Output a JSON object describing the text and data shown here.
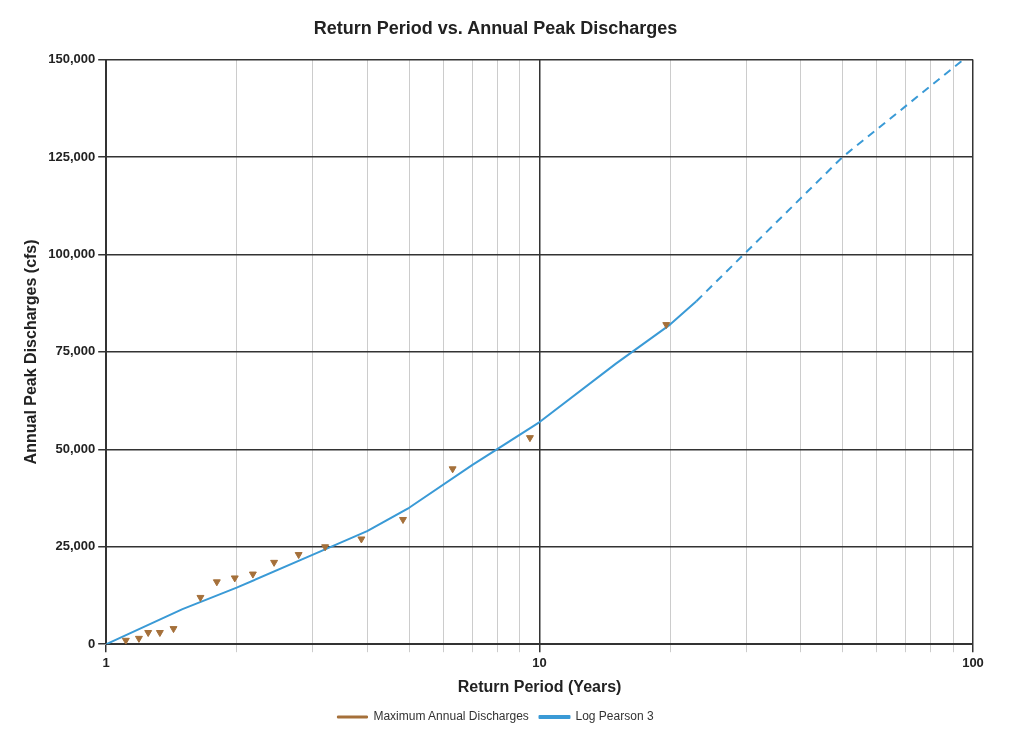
{
  "chart_data": {
    "type": "scatter",
    "title": "Return Period vs. Annual Peak Discharges",
    "xlabel": "Return Period (Years)",
    "ylabel": "Annual Peak Discharges (cfs)",
    "log": "x",
    "grid": true,
    "legend": "bottom",
    "xlim": [
      1,
      100
    ],
    "xticks": [
      1,
      {
        "value": 2,
        "label": null
      },
      {
        "value": 3,
        "label": null
      },
      {
        "value": 4,
        "label": null
      },
      {
        "value": 5,
        "label": null
      },
      {
        "value": 6,
        "label": null
      },
      {
        "value": 7,
        "label": null
      },
      {
        "value": 8,
        "label": null
      },
      {
        "value": 9,
        "label": null
      },
      10,
      {
        "value": 20,
        "label": null
      },
      {
        "value": 30,
        "label": null
      },
      {
        "value": 40,
        "label": null
      },
      {
        "value": 50,
        "label": null
      },
      {
        "value": 60,
        "label": null
      },
      {
        "value": 70,
        "label": null
      },
      {
        "value": 80,
        "label": null
      },
      {
        "value": 90,
        "label": null
      },
      100
    ],
    "ylim": [
      0,
      150000
    ],
    "yticks": [
      {
        "value": 0,
        "label": "0"
      },
      {
        "value": 25000,
        "label": "25,000"
      },
      {
        "value": 50000,
        "label": "50,000"
      },
      {
        "value": 75000,
        "label": "75,000"
      },
      {
        "value": 100000,
        "label": "100,000"
      },
      {
        "value": 125000,
        "label": "125,000"
      },
      {
        "value": 150000,
        "label": "150,000"
      }
    ],
    "series": [
      {
        "name": "Maximum Annual Discharges",
        "marker": "triangle",
        "color": "#a5703a",
        "x": [
          1.11,
          1.19,
          1.25,
          1.33,
          1.43,
          1.65,
          1.8,
          1.98,
          2.18,
          2.44,
          2.78,
          3.2,
          3.88,
          4.84,
          6.3,
          9.5,
          19.6
        ],
        "values": [
          1000,
          1500,
          3000,
          3000,
          4000,
          12000,
          16000,
          17000,
          18000,
          21000,
          23000,
          25000,
          27000,
          32000,
          45000,
          53000,
          82000
        ]
      },
      {
        "name": "Log Pearson 3",
        "type": "line",
        "marker": "none",
        "line_style": "solid",
        "color": "#3a9ad6",
        "x": [
          1,
          1.5,
          2,
          3,
          4,
          5,
          7,
          10,
          15,
          20,
          23
        ],
        "values": [
          0,
          9000,
          14500,
          23000,
          29000,
          35000,
          46000,
          57000,
          72000,
          82000,
          88000
        ]
      },
      {
        "type": "line",
        "marker": "none",
        "line_style": "dashed",
        "color": "#3a9ad6",
        "x": [
          23,
          50,
          95
        ],
        "values": [
          88000,
          125000,
          150000
        ]
      }
    ]
  }
}
